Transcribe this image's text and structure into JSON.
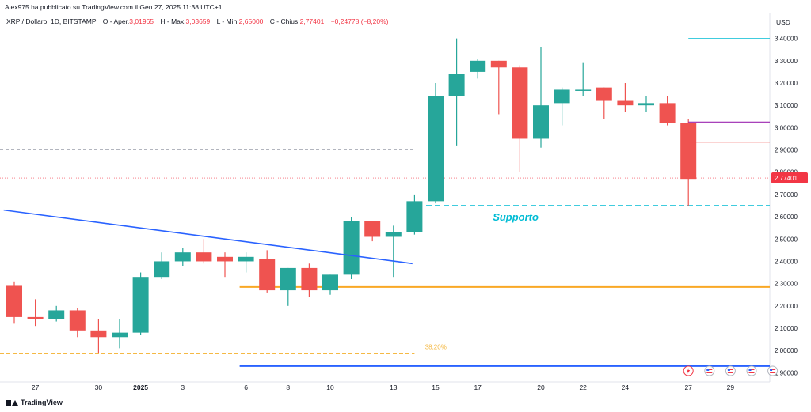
{
  "header": {
    "publisher": "Alex975 ha pubblicato su TradingView.com il Gen 27, 2025 11:38 UTC+1"
  },
  "infobar": {
    "symbol": "XRP / Dollaro, 1D, BITSTAMP",
    "open_label": "O - Aper.",
    "open_value": "3,01965",
    "high_label": "H - Max.",
    "high_value": "3,03659",
    "low_label": "L - Min.",
    "low_value": "2,65000",
    "close_label": "C - Chius.",
    "close_value": "2,77401",
    "change_value": "−0,24778 (−8,20%)"
  },
  "footer": {
    "brand": "TradingView"
  },
  "colors": {
    "up": "#26a69a",
    "down": "#ef5350",
    "trendline": "#2962ff",
    "support": "#00bcd4",
    "orange": "#f9a825",
    "fib": "#f5b944",
    "purple": "#9c27b0",
    "price_label": "#f23645",
    "marker_red": "#f23645"
  },
  "chart_data": {
    "type": "candlestick",
    "currency_label": "USD",
    "ylim": [
      1.88,
      3.42
    ],
    "y_ticks": [
      "1,90000",
      "2,00000",
      "2,10000",
      "2,20000",
      "2,30000",
      "2,40000",
      "2,50000",
      "2,60000",
      "2,70000",
      "2,80000",
      "2,90000",
      "3,00000",
      "3,10000",
      "3,20000",
      "3,30000",
      "3,40000"
    ],
    "x_ticks": [
      {
        "label": "27",
        "i": 1
      },
      {
        "label": "30",
        "i": 4
      },
      {
        "label": "2025",
        "i": 6
      },
      {
        "label": "3",
        "i": 8
      },
      {
        "label": "6",
        "i": 11
      },
      {
        "label": "8",
        "i": 13
      },
      {
        "label": "10",
        "i": 15
      },
      {
        "label": "13",
        "i": 18
      },
      {
        "label": "15",
        "i": 20
      },
      {
        "label": "17",
        "i": 22
      },
      {
        "label": "20",
        "i": 25
      },
      {
        "label": "22",
        "i": 27
      },
      {
        "label": "24",
        "i": 29
      },
      {
        "label": "27",
        "i": 32
      },
      {
        "label": "29",
        "i": 34
      }
    ],
    "candles": [
      {
        "o": 2.29,
        "h": 2.31,
        "l": 2.12,
        "c": 2.15
      },
      {
        "o": 2.15,
        "h": 2.23,
        "l": 2.11,
        "c": 2.14
      },
      {
        "o": 2.14,
        "h": 2.2,
        "l": 2.13,
        "c": 2.18
      },
      {
        "o": 2.18,
        "h": 2.19,
        "l": 2.06,
        "c": 2.09
      },
      {
        "o": 2.09,
        "h": 2.14,
        "l": 1.99,
        "c": 2.06
      },
      {
        "o": 2.06,
        "h": 2.14,
        "l": 2.01,
        "c": 2.08
      },
      {
        "o": 2.08,
        "h": 2.35,
        "l": 2.07,
        "c": 2.33
      },
      {
        "o": 2.33,
        "h": 2.44,
        "l": 2.32,
        "c": 2.4
      },
      {
        "o": 2.4,
        "h": 2.46,
        "l": 2.38,
        "c": 2.44
      },
      {
        "o": 2.44,
        "h": 2.5,
        "l": 2.39,
        "c": 2.4
      },
      {
        "o": 2.42,
        "h": 2.44,
        "l": 2.33,
        "c": 2.4
      },
      {
        "o": 2.4,
        "h": 2.44,
        "l": 2.35,
        "c": 2.42
      },
      {
        "o": 2.41,
        "h": 2.45,
        "l": 2.26,
        "c": 2.27
      },
      {
        "o": 2.27,
        "h": 2.37,
        "l": 2.2,
        "c": 2.37
      },
      {
        "o": 2.37,
        "h": 2.39,
        "l": 2.24,
        "c": 2.27
      },
      {
        "o": 2.27,
        "h": 2.34,
        "l": 2.25,
        "c": 2.34
      },
      {
        "o": 2.34,
        "h": 2.6,
        "l": 2.32,
        "c": 2.58
      },
      {
        "o": 2.58,
        "h": 2.58,
        "l": 2.49,
        "c": 2.51
      },
      {
        "o": 2.51,
        "h": 2.56,
        "l": 2.33,
        "c": 2.53
      },
      {
        "o": 2.53,
        "h": 2.7,
        "l": 2.52,
        "c": 2.67
      },
      {
        "o": 2.67,
        "h": 3.2,
        "l": 2.66,
        "c": 3.14
      },
      {
        "o": 3.14,
        "h": 3.4,
        "l": 2.92,
        "c": 3.24
      },
      {
        "o": 3.25,
        "h": 3.31,
        "l": 3.22,
        "c": 3.3
      },
      {
        "o": 3.3,
        "h": 3.3,
        "l": 3.06,
        "c": 3.27
      },
      {
        "o": 3.27,
        "h": 3.28,
        "l": 2.8,
        "c": 2.95
      },
      {
        "o": 2.95,
        "h": 3.36,
        "l": 2.91,
        "c": 3.1
      },
      {
        "o": 3.11,
        "h": 3.18,
        "l": 3.01,
        "c": 3.17
      },
      {
        "o": 3.17,
        "h": 3.29,
        "l": 3.14,
        "c": 3.17
      },
      {
        "o": 3.18,
        "h": 3.18,
        "l": 3.04,
        "c": 3.12
      },
      {
        "o": 3.12,
        "h": 3.2,
        "l": 3.07,
        "c": 3.1
      },
      {
        "o": 3.1,
        "h": 3.14,
        "l": 3.07,
        "c": 3.11
      },
      {
        "o": 3.11,
        "h": 3.14,
        "l": 3.01,
        "c": 3.02
      },
      {
        "o": 3.02,
        "h": 3.04,
        "l": 2.65,
        "c": 2.77
      }
    ],
    "drawings": {
      "trendline": {
        "from": {
          "i": -0.5,
          "y": 2.63
        },
        "to": {
          "i": 18.9,
          "y": 2.39
        }
      },
      "support_level": 2.65,
      "support_label": "Supporto",
      "orange_level": 2.285,
      "orange_from_i": 11,
      "blue_level": 1.93,
      "blue_from_i": 11,
      "fib_level": 1.985,
      "fib_label": "38,20%",
      "grey_dashed_level": 2.9,
      "grey_dashed_to_i": 19,
      "cyan_level": 3.4,
      "purple_level": 3.025,
      "red_level": 2.935,
      "current_price_label": "2,77401",
      "current_price": 2.77401
    },
    "marker_days": [
      32,
      33,
      34,
      35,
      36
    ]
  }
}
